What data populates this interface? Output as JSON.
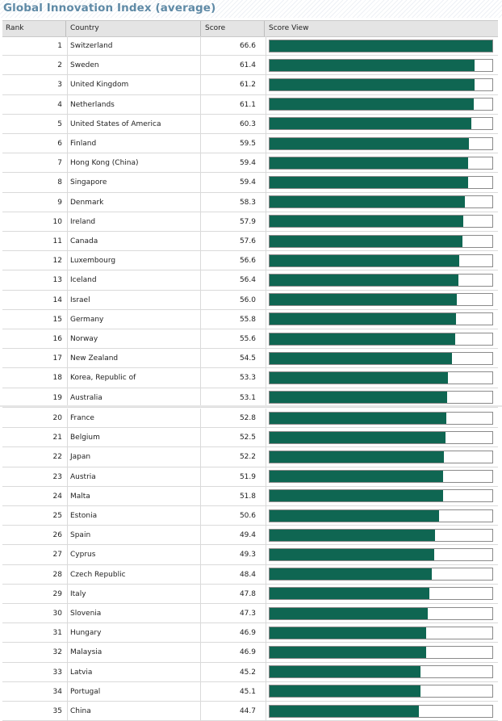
{
  "title": "Global Innovation Index (average)",
  "columns": [
    "Rank",
    "Country",
    "Score",
    "Score View"
  ],
  "chart_data": {
    "type": "bar",
    "title": "Global Innovation Index (average)",
    "orientation": "horizontal",
    "categories": [
      "Switzerland",
      "Sweden",
      "United Kingdom",
      "Netherlands",
      "United States of America",
      "Finland",
      "Hong Kong (China)",
      "Singapore",
      "Denmark",
      "Ireland",
      "Canada",
      "Luxembourg",
      "Iceland",
      "Israel",
      "Germany",
      "Norway",
      "New Zealand",
      "Korea, Republic of",
      "Australia",
      "France",
      "Belgium",
      "Japan",
      "Austria",
      "Malta",
      "Estonia",
      "Spain",
      "Cyprus",
      "Czech Republic",
      "Italy",
      "Slovenia",
      "Hungary",
      "Malaysia",
      "Latvia",
      "Portugal",
      "China"
    ],
    "ranks": [
      1,
      2,
      3,
      4,
      5,
      6,
      7,
      8,
      9,
      10,
      11,
      12,
      13,
      14,
      15,
      16,
      17,
      18,
      19,
      20,
      21,
      22,
      23,
      24,
      25,
      26,
      27,
      28,
      29,
      30,
      31,
      32,
      33,
      34,
      35
    ],
    "values": [
      66.6,
      61.4,
      61.2,
      61.1,
      60.3,
      59.5,
      59.4,
      59.4,
      58.3,
      57.9,
      57.6,
      56.6,
      56.4,
      56.0,
      55.8,
      55.6,
      54.5,
      53.3,
      53.1,
      52.8,
      52.5,
      52.2,
      51.9,
      51.8,
      50.6,
      49.4,
      49.3,
      48.4,
      47.8,
      47.3,
      46.9,
      46.9,
      45.2,
      45.1,
      44.7
    ],
    "score_labels": [
      "66.6",
      "61.4",
      "61.2",
      "61.1",
      "60.3",
      "59.5",
      "59.4",
      "59.4",
      "58.3",
      "57.9",
      "57.6",
      "56.6",
      "56.4",
      "56.0",
      "55.8",
      "55.6",
      "54.5",
      "53.3",
      "53.1",
      "52.8",
      "52.5",
      "52.2",
      "51.9",
      "51.8",
      "50.6",
      "49.4",
      "49.3",
      "48.4",
      "47.8",
      "47.3",
      "46.9",
      "46.9",
      "45.2",
      "45.1",
      "44.7"
    ],
    "xlim": [
      0,
      66.6
    ],
    "bar_color": "#0f6652",
    "grid": false,
    "legend": "none"
  }
}
